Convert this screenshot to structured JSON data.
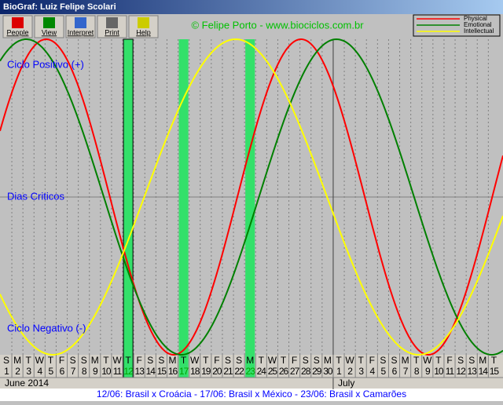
{
  "window_title": "BioGraf: Luiz Felipe Scolari",
  "toolbar": [
    "People",
    "View",
    "Interpret",
    "Print",
    "Help"
  ],
  "credit": "© Felipe Porto - www.biociclos.com.br",
  "legend": [
    {
      "name": "Physical",
      "color": "#ff0000"
    },
    {
      "name": "Emotional",
      "color": "#008000"
    },
    {
      "name": "Intellectual",
      "color": "#ffff00"
    }
  ],
  "axis_labels": {
    "top": "Ciclo Positivo (+)",
    "middle": "Dias Criticos",
    "bottom": "Ciclo Negativo (-)"
  },
  "days": [
    {
      "weekday": "S",
      "day": 1
    },
    {
      "weekday": "M",
      "day": 2
    },
    {
      "weekday": "T",
      "day": 3
    },
    {
      "weekday": "W",
      "day": 4
    },
    {
      "weekday": "T",
      "day": 5
    },
    {
      "weekday": "F",
      "day": 6
    },
    {
      "weekday": "S",
      "day": 7
    },
    {
      "weekday": "S",
      "day": 8
    },
    {
      "weekday": "M",
      "day": 9
    },
    {
      "weekday": "T",
      "day": 10
    },
    {
      "weekday": "W",
      "day": 11
    },
    {
      "weekday": "T",
      "day": 12,
      "highlight": true
    },
    {
      "weekday": "F",
      "day": 13
    },
    {
      "weekday": "S",
      "day": 14
    },
    {
      "weekday": "S",
      "day": 15
    },
    {
      "weekday": "M",
      "day": 16
    },
    {
      "weekday": "T",
      "day": 17,
      "highlight": true
    },
    {
      "weekday": "W",
      "day": 18
    },
    {
      "weekday": "T",
      "day": 19
    },
    {
      "weekday": "F",
      "day": 20
    },
    {
      "weekday": "S",
      "day": 21
    },
    {
      "weekday": "S",
      "day": 22
    },
    {
      "weekday": "M",
      "day": 23,
      "highlight": true
    },
    {
      "weekday": "T",
      "day": 24
    },
    {
      "weekday": "W",
      "day": 25
    },
    {
      "weekday": "T",
      "day": 26
    },
    {
      "weekday": "F",
      "day": 27
    },
    {
      "weekday": "S",
      "day": 28
    },
    {
      "weekday": "S",
      "day": 29
    },
    {
      "weekday": "M",
      "day": 30
    },
    {
      "weekday": "T",
      "day": 1
    },
    {
      "weekday": "W",
      "day": 2
    },
    {
      "weekday": "T",
      "day": 3
    },
    {
      "weekday": "F",
      "day": 4
    },
    {
      "weekday": "S",
      "day": 5
    },
    {
      "weekday": "S",
      "day": 6
    },
    {
      "weekday": "M",
      "day": 7
    },
    {
      "weekday": "T",
      "day": 8
    },
    {
      "weekday": "W",
      "day": 9
    },
    {
      "weekday": "T",
      "day": 10
    },
    {
      "weekday": "F",
      "day": 11
    },
    {
      "weekday": "S",
      "day": 12
    },
    {
      "weekday": "S",
      "day": 13
    },
    {
      "weekday": "M",
      "day": 14
    },
    {
      "weekday": "T",
      "day": 15
    }
  ],
  "months": [
    "June 2014",
    "July"
  ],
  "status": "12/06: Brasil x Croácia - 17/06: Brasil x México - 23/06: Brasil x Camarões"
}
